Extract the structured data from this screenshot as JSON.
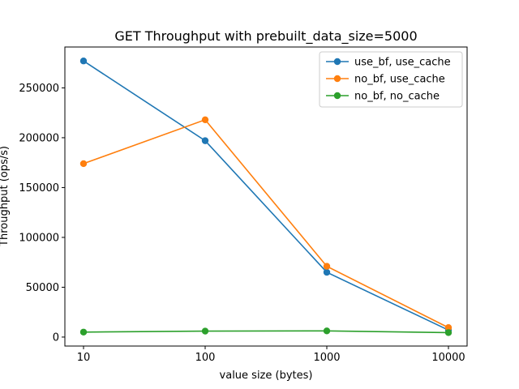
{
  "chart_data": {
    "type": "line",
    "title": "GET Throughput with prebuilt_data_size=5000",
    "xlabel": "value size (bytes)",
    "ylabel": "Throughput (ops/s)",
    "x_scale": "log",
    "x": [
      10,
      100,
      1000,
      10000
    ],
    "x_tick_labels": [
      "10",
      "100",
      "1000",
      "10000"
    ],
    "y_ticks": [
      0,
      50000,
      100000,
      150000,
      200000,
      250000
    ],
    "y_tick_labels": [
      "0",
      "50000",
      "100000",
      "150000",
      "200000",
      "250000"
    ],
    "ylim": [
      -9000,
      291000
    ],
    "grid": false,
    "legend_position": "top-right",
    "series": [
      {
        "name": "use_bf, use_cache",
        "color": "#1f77b4",
        "values": [
          277000,
          197000,
          65000,
          7000
        ]
      },
      {
        "name": "no_bf, use_cache",
        "color": "#ff7f0e",
        "values": [
          174000,
          218000,
          71000,
          9500
        ]
      },
      {
        "name": "no_bf, no_cache",
        "color": "#2ca02c",
        "values": [
          5000,
          6000,
          6200,
          4500
        ]
      }
    ]
  }
}
